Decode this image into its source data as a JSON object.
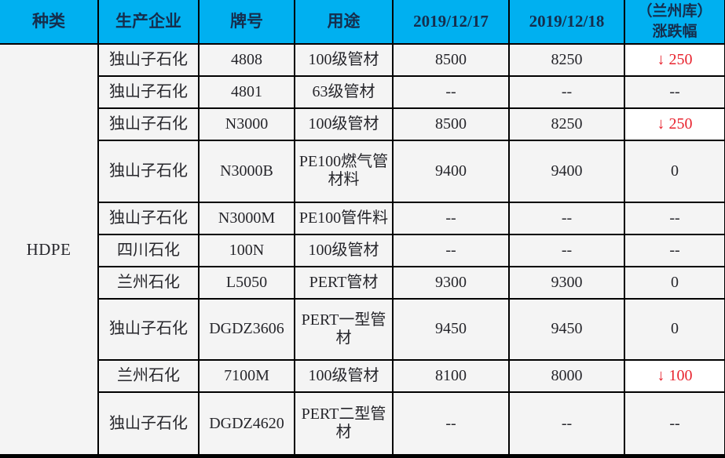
{
  "colors": {
    "header_bg": "#00b0f0",
    "header_text": "#152e4d",
    "cell_bg": "#f4f4f4",
    "change_down_bg": "#ffffff",
    "change_down_red": "#e8232e",
    "border": "#000000"
  },
  "header": {
    "type": "种类",
    "producer": "生产企业",
    "grade": "牌号",
    "use": "用途",
    "date1": "2019/12/17",
    "date2": "2019/12/18",
    "change_line1": "（兰州库）",
    "change_line2": "涨跌幅"
  },
  "category": "HDPE",
  "rows": [
    {
      "producer": "独山子石化",
      "grade": "4808",
      "use": "100级管材",
      "d1": "8500",
      "d2": "8250",
      "arrow": "↓ ",
      "change": "250",
      "change_style": "color:#e8232e;background:#ffffff"
    },
    {
      "producer": "独山子石化",
      "grade": "4801",
      "use": "63级管材",
      "d1": "--",
      "d2": "--",
      "arrow": "",
      "change": "--"
    },
    {
      "producer": "独山子石化",
      "grade": "N3000",
      "use": "100级管材",
      "d1": "8500",
      "d2": "8250",
      "arrow": "↓ ",
      "change": "250",
      "change_style": "color:#e8232e;background:#ffffff"
    },
    {
      "producer": "独山子石化",
      "grade": "N3000B",
      "use": "PE100燃气管材料",
      "d1": "9400",
      "d2": "9400",
      "arrow": "",
      "change": "0"
    },
    {
      "producer": "独山子石化",
      "grade": "N3000M",
      "use": "PE100管件料",
      "d1": "--",
      "d2": "--",
      "arrow": "",
      "change": "--"
    },
    {
      "producer": "四川石化",
      "grade": "100N",
      "use": "100级管材",
      "d1": "--",
      "d2": "--",
      "arrow": "",
      "change": "--"
    },
    {
      "producer": "兰州石化",
      "grade": "L5050",
      "use": "PERT管材",
      "d1": "9300",
      "d2": "9300",
      "arrow": "",
      "change": "0"
    },
    {
      "producer": "独山子石化",
      "grade": "DGDZ3606",
      "use": "PERT一型管材",
      "d1": "9450",
      "d2": "9450",
      "arrow": "",
      "change": "0"
    },
    {
      "producer": "兰州石化",
      "grade": "7100M",
      "use": "100级管材",
      "d1": "8100",
      "d2": "8000",
      "arrow": "↓ ",
      "change": "100",
      "change_style": "color:#e8232e;background:#ffffff"
    },
    {
      "producer": "独山子石化",
      "grade": "DGDZ4620",
      "use": "PERT二型管材",
      "d1": "--",
      "d2": "--",
      "arrow": "",
      "change": "--"
    }
  ]
}
